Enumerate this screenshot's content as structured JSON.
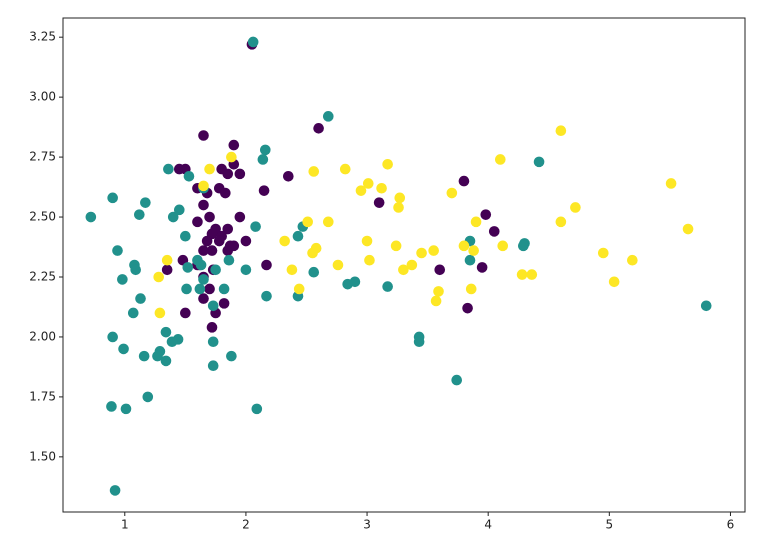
{
  "chart_data": {
    "type": "scatter",
    "xlim": [
      0.49,
      6.12
    ],
    "ylim": [
      1.27,
      3.33
    ],
    "xticks": [
      1,
      2,
      3,
      4,
      5,
      6
    ],
    "yticks": [
      {
        "value": 1.5,
        "label": "1.50"
      },
      1.75,
      {
        "value": 2,
        "label": "2.00"
      },
      2.25,
      {
        "value": 2.5,
        "label": "2.50"
      },
      2.75,
      {
        "value": 3,
        "label": "3.00"
      },
      3.25
    ],
    "series": [
      {
        "color": "#440154",
        "x": [
          2.05,
          1.65,
          2.6,
          1.9,
          1.5,
          1.45,
          1.8,
          1.95,
          1.85,
          1.9,
          2.35,
          3.8,
          1.6,
          1.78,
          1.83,
          2.15,
          1.68,
          3.1,
          1.65,
          1.95,
          3.98,
          1.7,
          1.6,
          4.05,
          1.75,
          1.85,
          1.72,
          1.8,
          1.68,
          1.78,
          2.0,
          1.87,
          1.72,
          1.85,
          1.65,
          1.9,
          3.95,
          1.48,
          1.62,
          1.73,
          2.17,
          3.6,
          1.35,
          1.65,
          1.7,
          1.65,
          1.82,
          1.75,
          1.5,
          3.83,
          1.72,
          1.6
        ],
        "values": [
          3.22,
          2.84,
          2.87,
          2.8,
          2.7,
          2.7,
          2.7,
          2.68,
          2.68,
          2.72,
          2.67,
          2.65,
          2.62,
          2.62,
          2.6,
          2.61,
          2.6,
          2.56,
          2.55,
          2.5,
          2.51,
          2.5,
          2.48,
          2.44,
          2.45,
          2.45,
          2.43,
          2.42,
          2.4,
          2.4,
          2.4,
          2.38,
          2.36,
          2.36,
          2.36,
          2.38,
          2.29,
          2.32,
          2.3,
          2.28,
          2.3,
          2.28,
          2.28,
          2.25,
          2.2,
          2.16,
          2.14,
          2.1,
          2.1,
          2.12,
          2.04,
          2.3
        ]
      },
      {
        "color": "#21918c",
        "x": [
          2.06,
          2.68,
          2.16,
          2.14,
          4.42,
          1.36,
          1.65,
          1.17,
          0.9,
          1.45,
          0.72,
          1.12,
          1.4,
          2.08,
          2.47,
          1.5,
          2.43,
          0.94,
          3.85,
          4.3,
          4.29,
          1.6,
          1.86,
          1.52,
          1.63,
          1.08,
          1.09,
          3.85,
          1.75,
          2.0,
          2.56,
          0.98,
          1.65,
          2.84,
          2.9,
          3.17,
          1.51,
          1.62,
          1.82,
          2.17,
          2.43,
          1.13,
          1.73,
          1.07,
          1.34,
          3.43,
          3.43,
          0.9,
          1.44,
          1.39,
          1.73,
          0.99,
          1.29,
          1.27,
          1.16,
          1.88,
          1.34,
          1.73,
          3.74,
          1.19,
          0.89,
          1.01,
          2.09,
          0.92,
          5.8,
          1.53
        ],
        "values": [
          3.23,
          2.92,
          2.78,
          2.74,
          2.73,
          2.7,
          2.62,
          2.56,
          2.58,
          2.53,
          2.5,
          2.51,
          2.5,
          2.46,
          2.46,
          2.42,
          2.42,
          2.36,
          2.4,
          2.39,
          2.38,
          2.32,
          2.32,
          2.29,
          2.3,
          2.3,
          2.28,
          2.32,
          2.28,
          2.28,
          2.27,
          2.24,
          2.24,
          2.22,
          2.23,
          2.21,
          2.2,
          2.2,
          2.2,
          2.17,
          2.17,
          2.16,
          2.13,
          2.1,
          2.02,
          2.0,
          1.98,
          2.0,
          1.99,
          1.98,
          1.98,
          1.95,
          1.94,
          1.92,
          1.92,
          1.92,
          1.9,
          1.88,
          1.82,
          1.75,
          1.71,
          1.7,
          1.7,
          1.36,
          2.13,
          2.67
        ]
      },
      {
        "color": "#fde725",
        "x": [
          1.7,
          1.88,
          1.65,
          4.6,
          4.1,
          3.17,
          2.82,
          2.56,
          3.01,
          3.12,
          2.95,
          3.7,
          3.27,
          3.26,
          4.72,
          5.51,
          4.6,
          3.9,
          2.68,
          2.51,
          5.65,
          2.58,
          2.55,
          3.0,
          2.32,
          3.24,
          3.8,
          4.12,
          3.45,
          3.55,
          3.88,
          4.95,
          1.35,
          3.02,
          5.19,
          2.76,
          3.37,
          3.3,
          2.38,
          4.28,
          4.36,
          1.28,
          5.04,
          2.44,
          3.59,
          3.86,
          3.57,
          1.29
        ],
        "values": [
          2.7,
          2.75,
          2.63,
          2.86,
          2.74,
          2.72,
          2.7,
          2.69,
          2.64,
          2.62,
          2.61,
          2.6,
          2.58,
          2.54,
          2.54,
          2.64,
          2.48,
          2.48,
          2.48,
          2.48,
          2.45,
          2.37,
          2.35,
          2.4,
          2.4,
          2.38,
          2.38,
          2.38,
          2.35,
          2.36,
          2.36,
          2.35,
          2.32,
          2.32,
          2.32,
          2.3,
          2.3,
          2.28,
          2.28,
          2.26,
          2.26,
          2.25,
          2.23,
          2.2,
          2.19,
          2.2,
          2.15,
          2.1
        ]
      }
    ]
  }
}
